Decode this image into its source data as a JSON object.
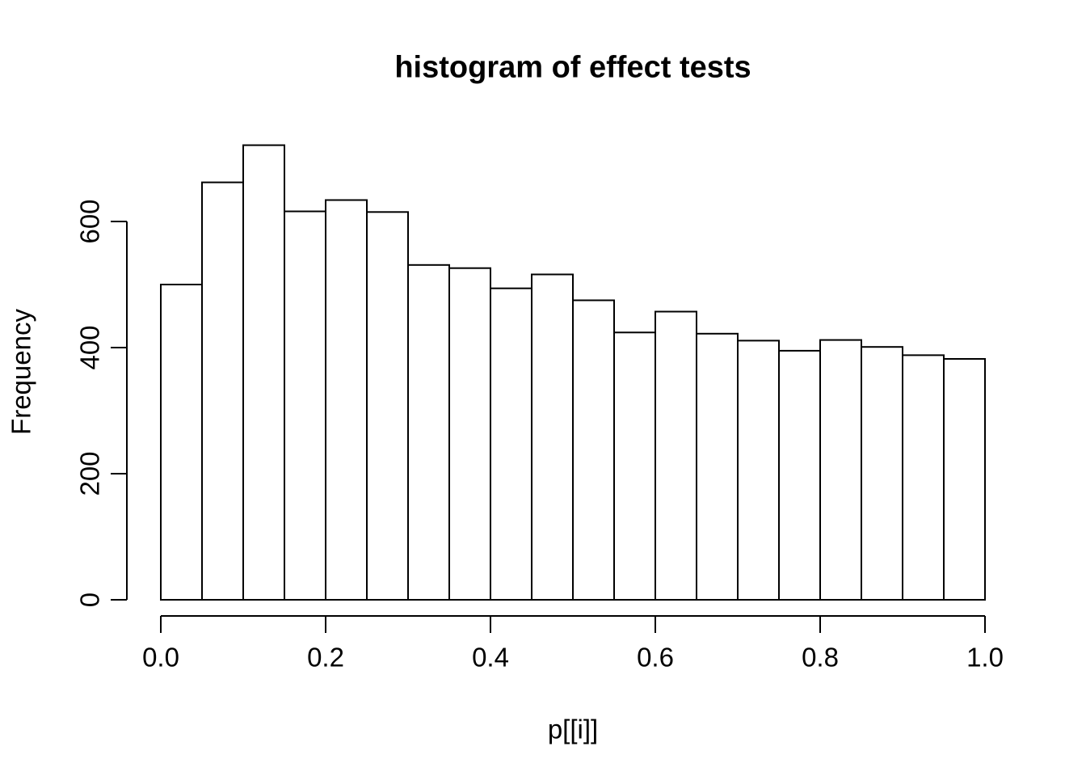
{
  "figure": {
    "background": "#ffffff",
    "stroke_color": "#000000",
    "bar_fill": "#ffffff"
  },
  "chart_data": {
    "type": "bar",
    "subtype": "histogram",
    "title": "histogram of effect tests",
    "xlabel": "p[[i]]",
    "ylabel": "Frequency",
    "bin_width": 0.05,
    "bin_edges": [
      0.0,
      0.05,
      0.1,
      0.15,
      0.2,
      0.25,
      0.3,
      0.35,
      0.4,
      0.45,
      0.5,
      0.55,
      0.6,
      0.65,
      0.7,
      0.75,
      0.8,
      0.85,
      0.9,
      0.95,
      1.0
    ],
    "counts": [
      500,
      662,
      721,
      616,
      634,
      615,
      531,
      526,
      494,
      516,
      475,
      424,
      457,
      422,
      411,
      395,
      412,
      401,
      388,
      382
    ],
    "xlim": [
      0.0,
      1.0
    ],
    "ylim": [
      0,
      600
    ],
    "x_axis_ticks": [
      0.0,
      0.2,
      0.4,
      0.6,
      0.8,
      1.0
    ],
    "x_tick_labels": [
      "0.0",
      "0.2",
      "0.4",
      "0.6",
      "0.8",
      "1.0"
    ],
    "y_axis_ticks": [
      0,
      200,
      400,
      600
    ],
    "y_tick_labels": [
      "0",
      "200",
      "400",
      "600"
    ],
    "grid": false,
    "legend": false
  }
}
